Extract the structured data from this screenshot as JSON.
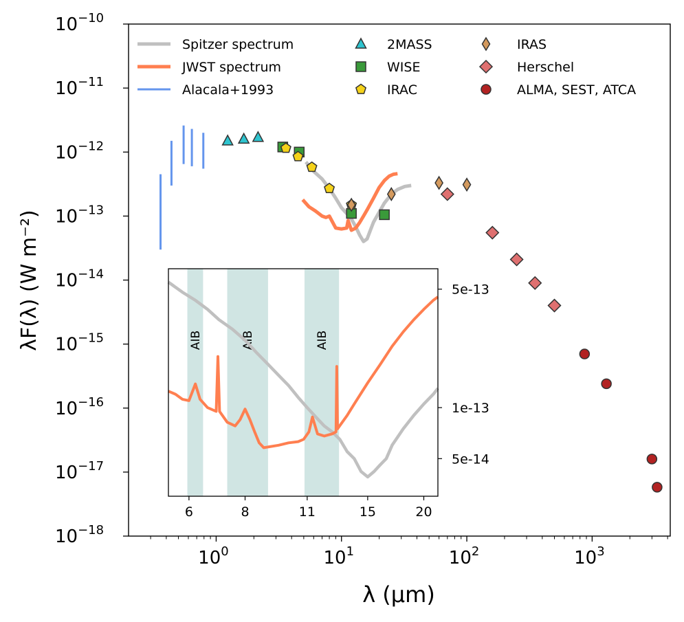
{
  "chart_data": {
    "type": "scatter",
    "xscale": "log",
    "yscale": "log",
    "xlabel": "λ (μm)",
    "ylabel": "λF(λ) (W m⁻²)",
    "xlim": [
      0.2,
      4200
    ],
    "ylim": [
      1e-18,
      1e-10
    ],
    "x_ticks": [
      {
        "value": 1,
        "base": "10",
        "exp": "0"
      },
      {
        "value": 10,
        "base": "10",
        "exp": "1"
      },
      {
        "value": 100,
        "base": "10",
        "exp": "2"
      },
      {
        "value": 1000,
        "base": "10",
        "exp": "3"
      }
    ],
    "y_ticks": [
      {
        "value": 1e-10,
        "base": "10",
        "exp": "−10"
      },
      {
        "value": 1e-11,
        "base": "10",
        "exp": "−11"
      },
      {
        "value": 1e-12,
        "base": "10",
        "exp": "−12"
      },
      {
        "value": 1e-13,
        "base": "10",
        "exp": "−13"
      },
      {
        "value": 1e-14,
        "base": "10",
        "exp": "−14"
      },
      {
        "value": 1e-15,
        "base": "10",
        "exp": "−15"
      },
      {
        "value": 1e-16,
        "base": "10",
        "exp": "−16"
      },
      {
        "value": 1e-17,
        "base": "10",
        "exp": "−17"
      },
      {
        "value": 1e-18,
        "base": "10",
        "exp": "−18"
      }
    ],
    "legend": {
      "placement": "top",
      "entries": [
        {
          "key": "spitzer",
          "label": "Spitzer spectrum",
          "kind": "line"
        },
        {
          "key": "jwst",
          "label": "JWST spectrum",
          "kind": "line"
        },
        {
          "key": "alacala",
          "label": "Alacala+1993",
          "kind": "line"
        },
        {
          "key": "twomass",
          "label": "2MASS",
          "kind": "marker"
        },
        {
          "key": "wise",
          "label": "WISE",
          "kind": "marker"
        },
        {
          "key": "irac",
          "label": "IRAC",
          "kind": "marker"
        },
        {
          "key": "iras",
          "label": "IRAS",
          "kind": "marker"
        },
        {
          "key": "herschel",
          "label": "Herschel",
          "kind": "marker"
        },
        {
          "key": "alma",
          "label": "ALMA, SEST, ATCA",
          "kind": "marker"
        }
      ]
    },
    "series": [
      {
        "key": "alacala",
        "name": "Alacala+1993",
        "type": "range",
        "color": "#6495ed",
        "ranges": [
          [
            0.36,
            3e-14,
            4.5e-13
          ],
          [
            0.44,
            3e-13,
            1.5e-12
          ],
          [
            0.55,
            6.5e-13,
            2.6e-12
          ],
          [
            0.64,
            6e-13,
            2.3e-12
          ],
          [
            0.79,
            5.5e-13,
            2e-12
          ]
        ]
      },
      {
        "key": "twomass",
        "name": "2MASS",
        "type": "scatter",
        "marker": "triangle",
        "color": "#2ec4cf",
        "points": [
          [
            1.235,
            1.5e-12
          ],
          [
            1.662,
            1.6e-12
          ],
          [
            2.159,
            1.7e-12
          ]
        ]
      },
      {
        "key": "wise",
        "name": "WISE",
        "type": "scatter",
        "marker": "square",
        "color": "#3a9a3a",
        "points": [
          [
            3.4,
            1.2e-12
          ],
          [
            4.6,
            1e-12
          ],
          [
            12.0,
            1.1e-13
          ],
          [
            22.0,
            1.05e-13
          ]
        ]
      },
      {
        "key": "irac",
        "name": "IRAC",
        "type": "scatter",
        "marker": "pentagon",
        "color": "#f5d21a",
        "points": [
          [
            3.6,
            1.15e-12
          ],
          [
            4.5,
            8.5e-13
          ],
          [
            5.8,
            5.8e-13
          ],
          [
            8.0,
            2.7e-13
          ],
          [
            12.0,
            1.5e-13
          ]
        ]
      },
      {
        "key": "iras",
        "name": "IRAS",
        "type": "scatter",
        "marker": "thin-diamond",
        "color": "#d49a5e",
        "points": [
          [
            12.0,
            1.5e-13
          ],
          [
            25.0,
            2.2e-13
          ],
          [
            60.0,
            3.3e-13
          ],
          [
            100.0,
            3.1e-13
          ]
        ]
      },
      {
        "key": "herschel",
        "name": "Herschel",
        "type": "scatter",
        "marker": "diamond",
        "color": "#df7070",
        "points": [
          [
            70,
            2.2e-13
          ],
          [
            160,
            5.5e-14
          ],
          [
            250,
            2.1e-14
          ],
          [
            350,
            9e-15
          ],
          [
            500,
            4e-15
          ]
        ]
      },
      {
        "key": "alma",
        "name": "ALMA, SEST, ATCA",
        "type": "scatter",
        "marker": "circle",
        "color": "#b22222",
        "points": [
          [
            870,
            7e-16
          ],
          [
            1300,
            2.4e-16
          ],
          [
            3000,
            1.6e-17
          ],
          [
            3300,
            5.8e-18
          ]
        ]
      },
      {
        "key": "spitzer",
        "name": "Spitzer spectrum",
        "type": "line",
        "color": "#c0c0c0",
        "points": [
          [
            5.2,
            7e-13
          ],
          [
            6.0,
            5e-13
          ],
          [
            7.0,
            3.8e-13
          ],
          [
            8.0,
            2.7e-13
          ],
          [
            9.0,
            1.9e-13
          ],
          [
            10.0,
            1.35e-13
          ],
          [
            11.0,
            1.1e-13
          ],
          [
            12.0,
            9e-14
          ],
          [
            13.0,
            6.8e-14
          ],
          [
            14.0,
            5e-14
          ],
          [
            15.0,
            4e-14
          ],
          [
            16.0,
            4.4e-14
          ],
          [
            17.0,
            6e-14
          ],
          [
            18.0,
            8e-14
          ],
          [
            20.0,
            1.15e-13
          ],
          [
            22.0,
            1.6e-13
          ],
          [
            25.0,
            2.2e-13
          ],
          [
            28.0,
            2.6e-13
          ],
          [
            32.0,
            2.9e-13
          ],
          [
            36.0,
            3e-13
          ]
        ]
      },
      {
        "key": "jwst",
        "name": "JWST spectrum",
        "type": "line",
        "color": "#ff7f50",
        "points": [
          [
            4.9,
            1.8e-13
          ],
          [
            5.5,
            1.4e-13
          ],
          [
            6.2,
            1.2e-13
          ],
          [
            7.0,
            1e-13
          ],
          [
            7.5,
            9.5e-14
          ],
          [
            8.0,
            1e-13
          ],
          [
            8.5,
            8e-14
          ],
          [
            9.0,
            6.5e-14
          ],
          [
            10.0,
            6.3e-14
          ],
          [
            11.0,
            6.5e-14
          ],
          [
            11.3,
            8.5e-14
          ],
          [
            12.0,
            6e-14
          ],
          [
            13.0,
            6.5e-14
          ],
          [
            14.0,
            8e-14
          ],
          [
            15.0,
            1e-13
          ],
          [
            16.0,
            1.25e-13
          ],
          [
            18.0,
            1.9e-13
          ],
          [
            20.0,
            2.8e-13
          ],
          [
            22.0,
            3.6e-13
          ],
          [
            24.0,
            4.2e-13
          ],
          [
            26.0,
            4.5e-13
          ],
          [
            28.0,
            4.6e-13
          ]
        ]
      }
    ],
    "inset": {
      "xlim": [
        5.4,
        21.5
      ],
      "ylim": [
        3e-14,
        6.6e-13
      ],
      "x_ticks": [
        {
          "value": 6,
          "label": "6"
        },
        {
          "value": 8,
          "label": "8"
        },
        {
          "value": 11,
          "label": "11"
        },
        {
          "value": 15,
          "label": "15"
        },
        {
          "value": 20,
          "label": "20"
        }
      ],
      "y_ticks": [
        {
          "value": 5e-13,
          "label": "5e-13"
        },
        {
          "value": 1e-13,
          "label": "1e-13"
        },
        {
          "value": 5e-14,
          "label": "5e-14"
        }
      ],
      "bands": [
        {
          "label": "AIB",
          "x0": 5.95,
          "x1": 6.45
        },
        {
          "label": "AIB",
          "x0": 7.3,
          "x1": 9.0
        },
        {
          "label": "AIB",
          "x0": 10.85,
          "x1": 12.95
        }
      ],
      "series": [
        {
          "key": "spitzer",
          "color": "#c0c0c0",
          "points": [
            [
              5.4,
              5.5e-13
            ],
            [
              5.8,
              4.8e-13
            ],
            [
              6.2,
              4.3e-13
            ],
            [
              6.6,
              3.8e-13
            ],
            [
              7.0,
              3.3e-13
            ],
            [
              7.5,
              2.9e-13
            ],
            [
              8.0,
              2.5e-13
            ],
            [
              8.5,
              2.1e-13
            ],
            [
              9.0,
              1.8e-13
            ],
            [
              9.5,
              1.55e-13
            ],
            [
              10.0,
              1.35e-13
            ],
            [
              10.5,
              1.15e-13
            ],
            [
              11.0,
              1e-13
            ],
            [
              11.5,
              8.8e-14
            ],
            [
              12.0,
              7.8e-14
            ],
            [
              12.5,
              7.2e-14
            ],
            [
              13.0,
              6.5e-14
            ],
            [
              13.5,
              5.5e-14
            ],
            [
              14.0,
              5e-14
            ],
            [
              14.5,
              4.2e-14
            ],
            [
              15.0,
              3.9e-14
            ],
            [
              15.5,
              4.2e-14
            ],
            [
              16.0,
              4.6e-14
            ],
            [
              16.5,
              5e-14
            ],
            [
              17.0,
              6e-14
            ],
            [
              18.0,
              7.5e-14
            ],
            [
              19.0,
              9e-14
            ],
            [
              20.0,
              1.05e-13
            ],
            [
              21.0,
              1.2e-13
            ],
            [
              21.5,
              1.3e-13
            ]
          ]
        },
        {
          "key": "jwst",
          "color": "#ff7f50",
          "points": [
            [
              5.4,
              1.25e-13
            ],
            [
              5.6,
              1.2e-13
            ],
            [
              5.8,
              1.12e-13
            ],
            [
              6.0,
              1.1e-13
            ],
            [
              6.2,
              1.38e-13
            ],
            [
              6.35,
              1.12e-13
            ],
            [
              6.6,
              1e-13
            ],
            [
              6.9,
              9.5e-14
            ],
            [
              6.96,
              2e-13
            ],
            [
              7.02,
              9.5e-14
            ],
            [
              7.3,
              8.2e-14
            ],
            [
              7.6,
              7.8e-14
            ],
            [
              7.8,
              8.5e-14
            ],
            [
              8.0,
              9.8e-14
            ],
            [
              8.2,
              8.5e-14
            ],
            [
              8.4,
              7.2e-14
            ],
            [
              8.6,
              6.2e-14
            ],
            [
              8.8,
              5.8e-14
            ],
            [
              9.5,
              6e-14
            ],
            [
              10.0,
              6.2e-14
            ],
            [
              10.5,
              6.3e-14
            ],
            [
              10.8,
              6.5e-14
            ],
            [
              11.1,
              7.2e-14
            ],
            [
              11.3,
              8.8e-14
            ],
            [
              11.6,
              7e-14
            ],
            [
              12.0,
              6.8e-14
            ],
            [
              12.5,
              7e-14
            ],
            [
              12.75,
              7.2e-14
            ],
            [
              12.8,
              1.75e-13
            ],
            [
              12.85,
              7.5e-14
            ],
            [
              13.5,
              9e-14
            ],
            [
              14.0,
              1.05e-13
            ],
            [
              15.0,
              1.4e-13
            ],
            [
              16.0,
              1.8e-13
            ],
            [
              17.0,
              2.3e-13
            ],
            [
              18.0,
              2.8e-13
            ],
            [
              19.0,
              3.3e-13
            ],
            [
              20.0,
              3.8e-13
            ],
            [
              21.0,
              4.3e-13
            ],
            [
              21.5,
              4.5e-13
            ]
          ]
        }
      ]
    }
  }
}
